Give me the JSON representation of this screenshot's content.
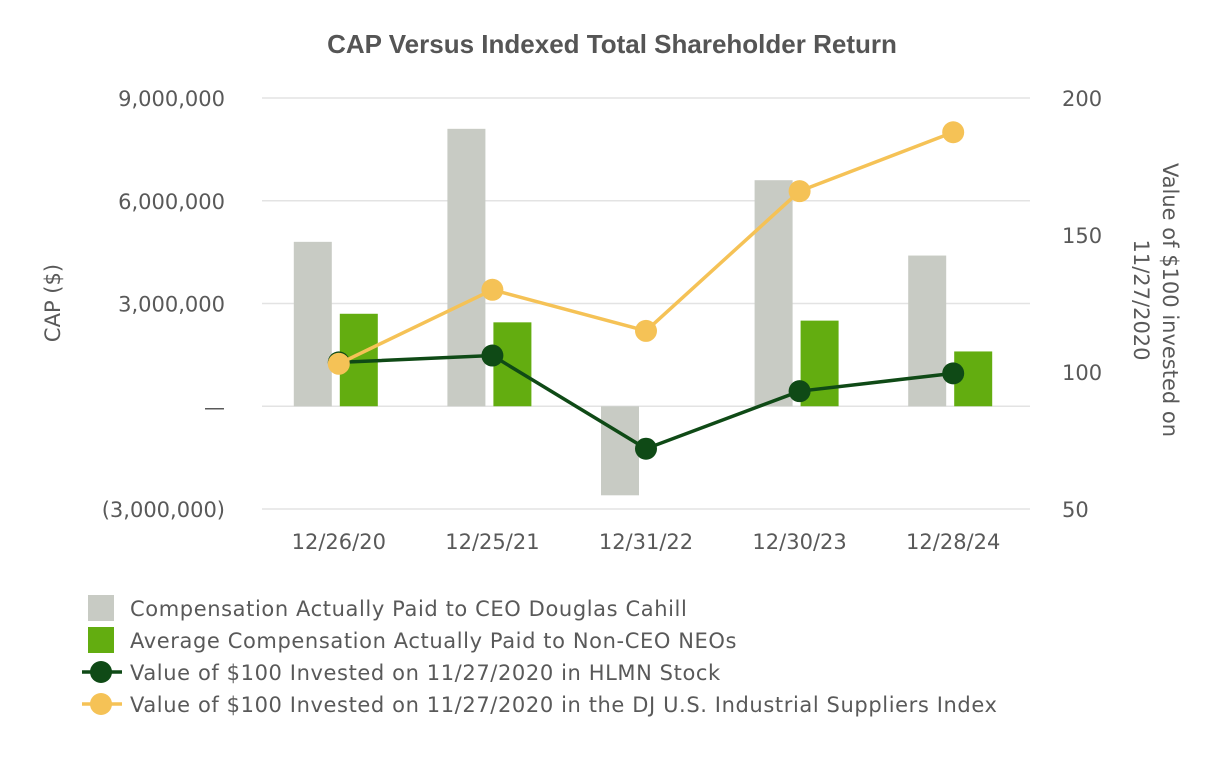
{
  "chart_data": {
    "type": "bar",
    "title": "CAP Versus Indexed Total Shareholder Return",
    "categories": [
      "12/26/20",
      "12/25/21",
      "12/31/22",
      "12/30/23",
      "12/28/24"
    ],
    "ylabel": "CAP ($)",
    "y2label_line1": "Value of $100 invested on",
    "y2label_line2": "11/27/2020",
    "ylim": [
      -3000000,
      9000000
    ],
    "y2lim": [
      50,
      200
    ],
    "y_ticks": [
      {
        "value": 9000000,
        "label": "9,000,000"
      },
      {
        "value": 6000000,
        "label": "6,000,000"
      },
      {
        "value": 3000000,
        "label": "3,000,000"
      },
      {
        "value": 0,
        "label": "—"
      },
      {
        "value": -3000000,
        "label": "(3,000,000)"
      }
    ],
    "y2_ticks": [
      {
        "value": 200,
        "label": "200"
      },
      {
        "value": 150,
        "label": "150"
      },
      {
        "value": 100,
        "label": "100"
      },
      {
        "value": 50,
        "label": "50"
      }
    ],
    "grid": true,
    "legend_position": "bottom",
    "series": [
      {
        "name": "Compensation Actually Paid to CEO Douglas Cahill",
        "kind": "bar",
        "axis": "left",
        "color": "#c8cbc4",
        "values": [
          4800000,
          8100000,
          -2600000,
          6600000,
          4400000
        ]
      },
      {
        "name": "Average Compensation Actually Paid to Non-CEO NEOs",
        "kind": "bar",
        "axis": "left",
        "color": "#63ad10",
        "values": [
          2700000,
          2450000,
          0,
          2500000,
          1600000
        ]
      },
      {
        "name": "Value of $100 Invested on 11/27/2020 in HLMN Stock",
        "kind": "line",
        "axis": "right",
        "color": "#0f4a16",
        "values": [
          103.5,
          106,
          72,
          93,
          99.5
        ]
      },
      {
        "name": "Value of $100 Invested on 11/27/2020 in the DJ U.S. Industrial Suppliers Index",
        "kind": "line",
        "axis": "right",
        "color": "#f5c256",
        "values": [
          103,
          130,
          115,
          166,
          187.5
        ]
      }
    ]
  }
}
